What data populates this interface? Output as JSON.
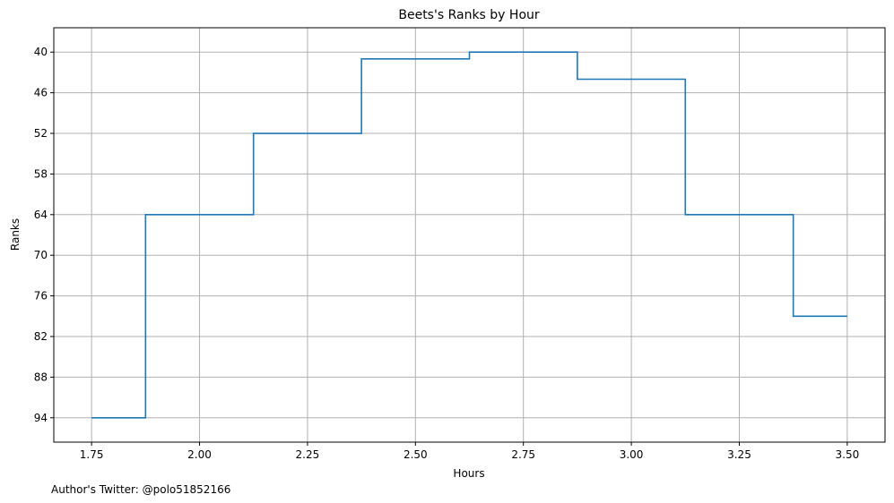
{
  "chart_data": {
    "type": "line",
    "drawstyle": "steps-post",
    "title": "Beets's Ranks by Hour",
    "xlabel": "Hours",
    "ylabel": "Ranks",
    "x": [
      1.75,
      1.875,
      2.125,
      2.375,
      2.625,
      2.875,
      3.125,
      3.375,
      3.5
    ],
    "y": [
      94,
      64,
      52,
      41,
      40,
      44,
      64,
      79,
      79
    ],
    "xlim": [
      1.6625,
      3.5875
    ],
    "ylim": [
      97.6,
      36.4
    ],
    "y_inverted": true,
    "xticks": [
      1.75,
      2.0,
      2.25,
      2.5,
      2.75,
      3.0,
      3.25,
      3.5
    ],
    "xtick_labels": [
      "1.75",
      "2.00",
      "2.25",
      "2.50",
      "2.75",
      "3.00",
      "3.25",
      "3.50"
    ],
    "yticks": [
      40,
      46,
      52,
      58,
      64,
      70,
      76,
      82,
      88,
      94
    ],
    "ytick_labels": [
      "40",
      "46",
      "52",
      "58",
      "64",
      "70",
      "76",
      "82",
      "88",
      "94"
    ],
    "grid": true,
    "line_color": "#1f77b4",
    "grid_color": "#b0b0b0"
  },
  "footer": {
    "credit": "Author's Twitter: @polo51852166"
  }
}
